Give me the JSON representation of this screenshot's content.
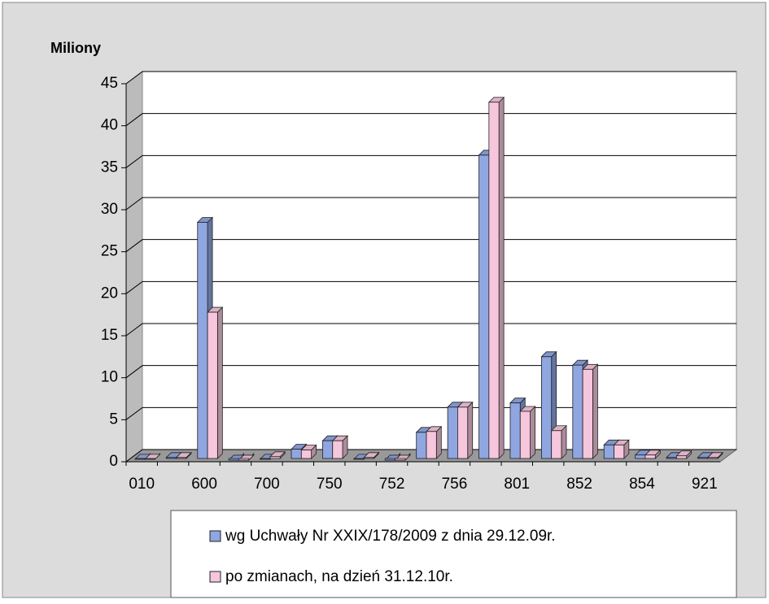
{
  "chart_data": {
    "type": "bar3d",
    "y_label": "Miliony",
    "categories": [
      "010",
      null,
      "600",
      null,
      "700",
      null,
      "750",
      null,
      "752",
      null,
      "756",
      null,
      "801",
      null,
      "852",
      null,
      "854",
      null,
      "921"
    ],
    "series": [
      {
        "name": "wg Uchwały Nr XXIX/178/2009 z dnia 29.12.09r.",
        "color": "#8fa6e0",
        "values": [
          0.3,
          0.5,
          28.5,
          0.2,
          0.3,
          1.5,
          2.5,
          0.3,
          0.2,
          3.5,
          6.5,
          36.5,
          7,
          12.5,
          11.5,
          2,
          0.8,
          0.5,
          0.5
        ]
      },
      {
        "name": "po zmianach, na dzień 31.12.10r.",
        "color": "#f5c6dc",
        "values": [
          0.3,
          0.5,
          17.8,
          0.2,
          0.6,
          1.4,
          2.5,
          0.5,
          0.2,
          3.6,
          6.5,
          42.8,
          6,
          3.7,
          11,
          2,
          0.8,
          0.7,
          0.5
        ]
      }
    ],
    "ylim": [
      0,
      45
    ],
    "yticks": [
      0,
      5,
      10,
      15,
      20,
      25,
      30,
      35,
      40,
      45
    ],
    "grid": true
  }
}
